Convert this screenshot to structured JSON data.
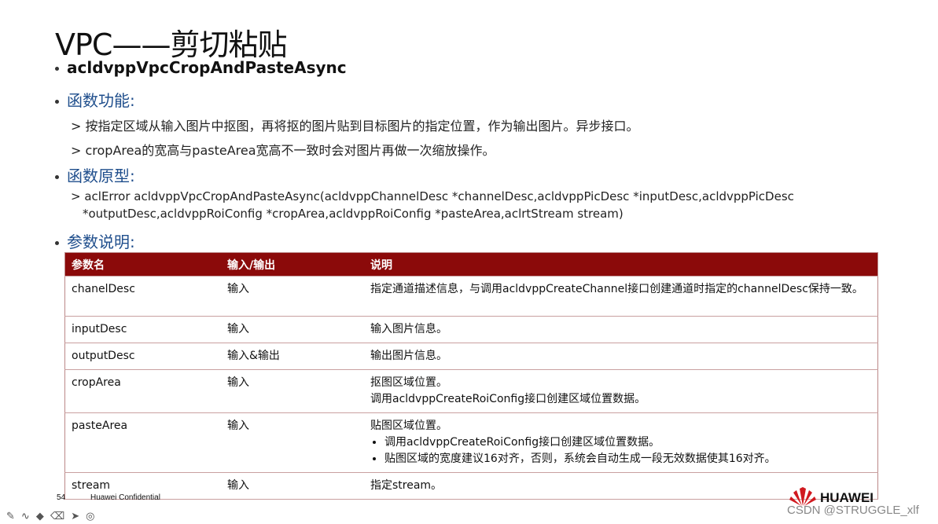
{
  "title": "VPC——剪切粘贴",
  "function_name": "acldvppVpcCropAndPasteAsync",
  "sections": {
    "feature": {
      "heading": "函数功能:",
      "items": [
        "> 按指定区域从输入图片中抠图，再将抠的图片贴到目标图片的指定位置，作为输出图片。异步接口。",
        "> cropArea的宽高与pasteArea宽高不一致时会对图片再做一次缩放操作。"
      ]
    },
    "prototype": {
      "heading": "函数原型:",
      "line1": "> aclError acldvppVpcCropAndPasteAsync(acldvppChannelDesc *channelDesc,acldvppPicDesc *inputDesc,acldvppPicDesc",
      "line2": "*outputDesc,acldvppRoiConfig *cropArea,acldvppRoiConfig *pasteArea,aclrtStream stream)"
    },
    "params": {
      "heading": "参数说明:"
    }
  },
  "table": {
    "headers": [
      "参数名",
      "输入/输出",
      "说明"
    ],
    "rows": [
      {
        "name": "chanelDesc",
        "io": "输入",
        "desc": [
          "指定通道描述信息，与调用acldvppCreateChannel接口创建通道时指定的channelDesc保持一致。"
        ]
      },
      {
        "name": "inputDesc",
        "io": "输入",
        "desc": [
          "输入图片信息。"
        ]
      },
      {
        "name": "outputDesc",
        "io": "输入&输出",
        "desc": [
          "输出图片信息。"
        ]
      },
      {
        "name": "cropArea",
        "io": "输入",
        "desc": [
          "抠图区域位置。",
          "调用acldvppCreateRoiConfig接口创建区域位置数据。"
        ]
      },
      {
        "name": "pasteArea",
        "io": "输入",
        "desc": [
          "贴图区域位置。"
        ],
        "bullets": [
          "调用acldvppCreateRoiConfig接口创建区域位置数据。",
          "贴图区域的宽度建议16对齐，否则，系统会自动生成一段无效数据使其16对齐。"
        ]
      },
      {
        "name": "stream",
        "io": "输入",
        "desc": [
          "指定stream。"
        ]
      }
    ]
  },
  "footer": {
    "page": "54",
    "confidential": "Huawei Confidential",
    "brand": "HUAWEI",
    "watermark": "CSDN @STRUGGLE_xlf"
  },
  "colors": {
    "header_bg": "#8b0a0a",
    "heading_blue": "#1f4e8c",
    "logo_red": "#d0191f"
  }
}
